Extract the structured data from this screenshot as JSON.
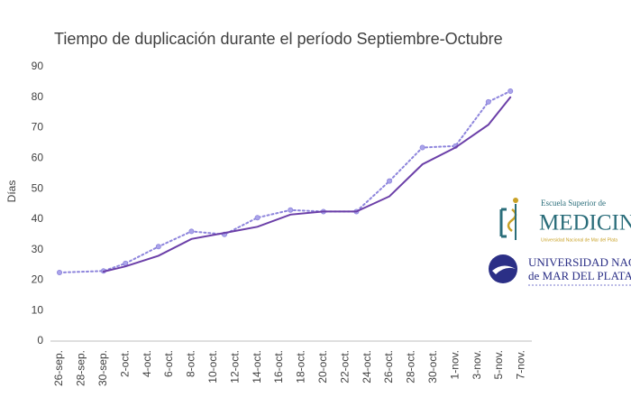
{
  "chart_data": {
    "type": "line",
    "title": "Tiempo de duplicación durante el período Septiembre-Octubre",
    "y_label": "Días",
    "categories": [
      "26-sep.",
      null,
      "28-sep.",
      null,
      "30-sep.",
      null,
      "2-oct.",
      null,
      "4-oct.",
      null,
      "6-oct.",
      null,
      "8-oct.",
      null,
      "10-oct.",
      null,
      "12-oct.",
      null,
      "14-oct.",
      null,
      "16-oct.",
      null,
      "18-oct.",
      null,
      "20-oct.",
      null,
      "22-oct.",
      null,
      "24-oct.",
      null,
      "26-oct.",
      null,
      "28-oct.",
      null,
      "30-oct.",
      null,
      "1-nov.",
      null,
      "3-nov.",
      null,
      "5-nov.",
      null,
      "7-nov."
    ],
    "series": [
      {
        "color": "#8d84dc",
        "dash": "dot",
        "marker": true,
        "values": [
          22.5,
          null,
          null,
          null,
          23,
          null,
          25.5,
          null,
          null,
          31,
          null,
          null,
          36,
          null,
          null,
          35,
          null,
          null,
          40.5,
          null,
          null,
          43,
          null,
          null,
          42.5,
          null,
          null,
          42.5,
          null,
          null,
          52.5,
          null,
          null,
          63.5,
          null,
          null,
          64,
          null,
          null,
          78.5,
          null,
          82,
          null
        ]
      },
      {
        "color": "#6b3fa8",
        "dash": "solid",
        "marker": false,
        "values": [
          null,
          null,
          null,
          null,
          22.8,
          null,
          24.5,
          null,
          null,
          28,
          null,
          null,
          33.5,
          null,
          null,
          35.5,
          null,
          null,
          37.5,
          null,
          null,
          41.5,
          null,
          null,
          42.5,
          null,
          null,
          42.5,
          null,
          null,
          47.5,
          null,
          null,
          58,
          null,
          null,
          63.5,
          null,
          null,
          71,
          null,
          80,
          null
        ]
      }
    ],
    "connect_gaps": true,
    "ylim": [
      0,
      90
    ],
    "yticks": [
      0,
      10,
      20,
      30,
      40,
      50,
      60,
      70,
      80,
      90
    ],
    "grid": false
  },
  "logos": {
    "school_small": "Escuela Superior de",
    "school_big": "MEDICINA",
    "school_sub": "Universidad Nacional de Mar del Plata",
    "uni_line1": "UNIVERSIDAD NACIONAL",
    "uni_line2": "de MAR DEL PLATA"
  }
}
